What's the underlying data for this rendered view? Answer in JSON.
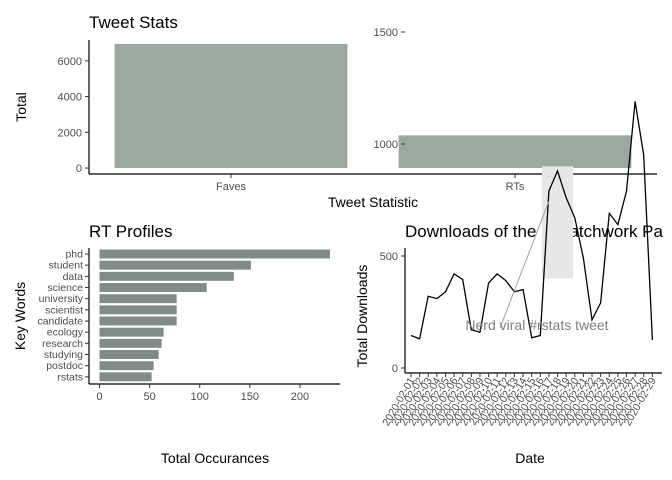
{
  "chart_data": [
    {
      "type": "bar",
      "title": "Tweet Stats",
      "xlabel": "Tweet Statistic",
      "ylabel": "Total",
      "categories": [
        "Faves",
        "RTs"
      ],
      "values": [
        6950,
        1830
      ],
      "ylim": [
        0,
        7000
      ],
      "yticks": [
        "0",
        "2000",
        "4000",
        "6000"
      ],
      "color": "#9aaaa1",
      "grid": false
    },
    {
      "type": "bar",
      "orientation": "horizontal",
      "title": "RT Profiles",
      "xlabel": "Total Occurances",
      "ylabel": "Key Words",
      "categories": [
        "phd",
        "student",
        "data",
        "science",
        "university",
        "scientist",
        "candidate",
        "ecology",
        "research",
        "studying",
        "postdoc",
        "rstats"
      ],
      "values": [
        230,
        151,
        134,
        107,
        77,
        77,
        77,
        64,
        62,
        59,
        54,
        52
      ],
      "xlim": [
        0,
        240
      ],
      "xticks": [
        "0",
        "50",
        "100",
        "150",
        "200"
      ],
      "color": "#7f8c89",
      "grid": false
    },
    {
      "type": "line",
      "title": "Downloads of the R Patchwork Pa",
      "xlabel": "Date",
      "ylabel": "Total Downloads",
      "x": [
        "2020-02-01",
        "2020-02-02",
        "2020-02-03",
        "2020-02-04",
        "2020-02-05",
        "2020-02-06",
        "2020-02-07",
        "2020-02-08",
        "2020-02-09",
        "2020-02-10",
        "2020-02-11",
        "2020-02-12",
        "2020-02-13",
        "2020-02-14",
        "2020-02-15",
        "2020-02-16",
        "2020-02-17",
        "2020-02-18",
        "2020-02-19",
        "2020-02-20",
        "2020-02-21",
        "2020-02-22",
        "2020-02-23",
        "2020-02-24",
        "2020-02-25",
        "2020-02-26",
        "2020-02-27",
        "2020-02-28",
        "2020-02-29"
      ],
      "values": [
        145,
        130,
        320,
        310,
        340,
        420,
        395,
        170,
        160,
        380,
        420,
        390,
        340,
        350,
        135,
        145,
        790,
        880,
        760,
        670,
        490,
        215,
        290,
        690,
        640,
        790,
        1190,
        950,
        125
      ],
      "ylim": [
        0,
        1560
      ],
      "yticks": [
        "0",
        "500",
        "1000",
        "1500"
      ],
      "line_color": "#000000",
      "grid": false,
      "annotation": {
        "text": "Nerd viral #rstats tweet",
        "x_range": [
          "2020-02-17",
          "2020-02-19"
        ],
        "y_range": [
          400,
          900
        ],
        "highlight_color": "#e5e8e6",
        "arrow_to": "2020-02-17"
      }
    }
  ]
}
